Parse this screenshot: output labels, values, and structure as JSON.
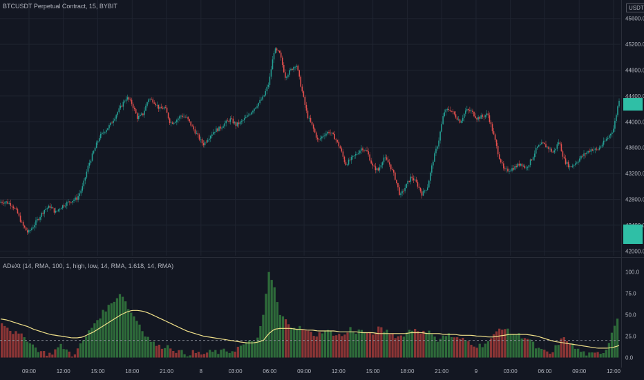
{
  "header": {
    "symbol_title": "BTCUSDT Perpetual Contract, 15, BYBIT",
    "currency": "USDT"
  },
  "indicator": {
    "legend": "ADeXt (14, RMA, 100, 1, high, low, 14, RMA, 1.618, 14, RMA)"
  },
  "colors": {
    "background": "#131722",
    "grid": "#1f2430",
    "text": "#b2b5be",
    "candle_up": "#26a69a",
    "candle_down": "#ef5350",
    "hist_up": "#2e6b3a",
    "hist_down": "#8b3535",
    "signal_line": "#f0e08a",
    "threshold_line": "#9598a1",
    "price_tag": "#2fbfa6"
  },
  "chart_data": [
    {
      "type": "candlestick",
      "title": "BTCUSDT Perpetual Contract, 15, BYBIT",
      "xlabel": "",
      "ylabel": "",
      "y_ticks": [
        "42000.0",
        "42400.0",
        "42800.0",
        "43200.0",
        "43600.0",
        "44000.0",
        "44400.0",
        "44800.0",
        "45200.0",
        "45600.0"
      ],
      "ylim": [
        41950,
        45800
      ],
      "x_ticks": [
        "09:00",
        "12:00",
        "15:00",
        "18:00",
        "21:00",
        "8",
        "03:00",
        "06:00",
        "09:00",
        "12:00",
        "15:00",
        "18:00",
        "21:00",
        "9",
        "03:00",
        "06:00",
        "09:00",
        "12:00"
      ],
      "close_path": [
        42760,
        42760,
        42720,
        42600,
        42400,
        42280,
        42390,
        42520,
        42640,
        42690,
        42600,
        42680,
        42740,
        42780,
        42820,
        43000,
        43320,
        43540,
        43760,
        43860,
        43950,
        44100,
        44240,
        44380,
        44280,
        44060,
        44120,
        44360,
        44320,
        44200,
        44220,
        43980,
        44020,
        44100,
        44060,
        43920,
        43780,
        43650,
        43760,
        43860,
        43900,
        43980,
        44040,
        43950,
        44000,
        44080,
        44180,
        44280,
        44380,
        44600,
        45120,
        45050,
        44700,
        44800,
        44900,
        44500,
        44100,
        43920,
        43700,
        43800,
        43850,
        43760,
        43600,
        43340,
        43420,
        43500,
        43600,
        43530,
        43300,
        43250,
        43450,
        43350,
        43150,
        42850,
        43000,
        43150,
        43050,
        42880,
        43000,
        43400,
        43700,
        44150,
        44200,
        44100,
        44000,
        44180,
        44160,
        44060,
        44080,
        44120,
        43820,
        43480,
        43240,
        43260,
        43300,
        43360,
        43280,
        43420,
        43600,
        43660,
        43600,
        43520,
        43700,
        43400,
        43300,
        43360,
        43450,
        43520,
        43580,
        43560,
        43660,
        43760,
        43900,
        44350
      ],
      "last_price_marker": 44350
    },
    {
      "type": "bar",
      "title": "ADeXt (14, RMA, 100, 1, high, low, 14, RMA, 1.618, 14, RMA)",
      "xlabel": "",
      "ylabel": "",
      "y_ticks": [
        "0.0",
        "25.0",
        "50.0",
        "75.0",
        "100.0"
      ],
      "ylim": [
        -2,
        110
      ],
      "threshold": 20,
      "x_ticks": [
        "09:00",
        "12:00",
        "15:00",
        "18:00",
        "21:00",
        "8",
        "03:00",
        "06:00",
        "09:00",
        "12:00",
        "15:00",
        "18:00",
        "21:00",
        "9",
        "03:00",
        "06:00",
        "09:00",
        "12:00"
      ],
      "value_path": [
        42,
        36,
        30,
        27,
        24,
        20,
        12,
        8,
        5,
        4,
        10,
        14,
        8,
        3,
        10,
        20,
        30,
        40,
        48,
        56,
        62,
        70,
        76,
        60,
        50,
        42,
        30,
        22,
        16,
        12,
        14,
        12,
        8,
        6,
        4,
        6,
        5,
        4,
        6,
        7,
        6,
        8,
        7,
        10,
        14,
        16,
        20,
        22,
        48,
        100,
        82,
        50,
        44,
        38,
        36,
        34,
        30,
        28,
        26,
        32,
        30,
        28,
        26,
        26,
        34,
        30,
        32,
        28,
        26,
        34,
        32,
        30,
        26,
        24,
        28,
        32,
        34,
        30,
        28,
        30,
        20,
        24,
        28,
        22,
        22,
        20,
        18,
        14,
        14,
        18,
        22,
        32,
        36,
        30,
        28,
        26,
        24,
        20,
        12,
        8,
        6,
        4,
        16,
        22,
        20,
        12,
        8,
        5,
        3,
        4,
        6,
        10,
        30,
        48
      ],
      "rising_mask": [
        0,
        0,
        0,
        0,
        1,
        1,
        1,
        0,
        0,
        0,
        1,
        1,
        0,
        0,
        1,
        1,
        1,
        1,
        1,
        1,
        1,
        1,
        1,
        1,
        1,
        1,
        1,
        1,
        0,
        0,
        1,
        0,
        0,
        1,
        1,
        0,
        0,
        0,
        1,
        1,
        1,
        1,
        1,
        0,
        1,
        1,
        1,
        1,
        1,
        1,
        1,
        1,
        0,
        1,
        1,
        0,
        0,
        0,
        0,
        1,
        1,
        0,
        0,
        0,
        1,
        1,
        1,
        0,
        0,
        0,
        1,
        0,
        0,
        0,
        1,
        1,
        0,
        0,
        1,
        1,
        1,
        1,
        1,
        0,
        0,
        1,
        0,
        0,
        1,
        1,
        0,
        0,
        0,
        1,
        1,
        1,
        0,
        1,
        1,
        1,
        0,
        0,
        1,
        0,
        0,
        1,
        1,
        1,
        1,
        0,
        1,
        1,
        1,
        1
      ],
      "smoothed_path": [
        45,
        44,
        42,
        40,
        38,
        36,
        33,
        31,
        29,
        27,
        26,
        25,
        24,
        23,
        23,
        24,
        27,
        30,
        34,
        38,
        42,
        46,
        50,
        53,
        55,
        55,
        54,
        52,
        49,
        46,
        43,
        40,
        37,
        34,
        31,
        29,
        27,
        25,
        24,
        23,
        22,
        21,
        20,
        19,
        18,
        17,
        17,
        18,
        20,
        28,
        33,
        34,
        34,
        34,
        33,
        33,
        32,
        32,
        31,
        31,
        31,
        31,
        30,
        30,
        30,
        30,
        29,
        29,
        29,
        28,
        28,
        28,
        28,
        28,
        28,
        29,
        29,
        29,
        28,
        28,
        28,
        27,
        27,
        27,
        26,
        26,
        26,
        25,
        25,
        24,
        24,
        25,
        26,
        27,
        27,
        27,
        27,
        26,
        25,
        23,
        21,
        19,
        18,
        17,
        16,
        15,
        14,
        13,
        12,
        11,
        11,
        11,
        12,
        14
      ]
    }
  ]
}
